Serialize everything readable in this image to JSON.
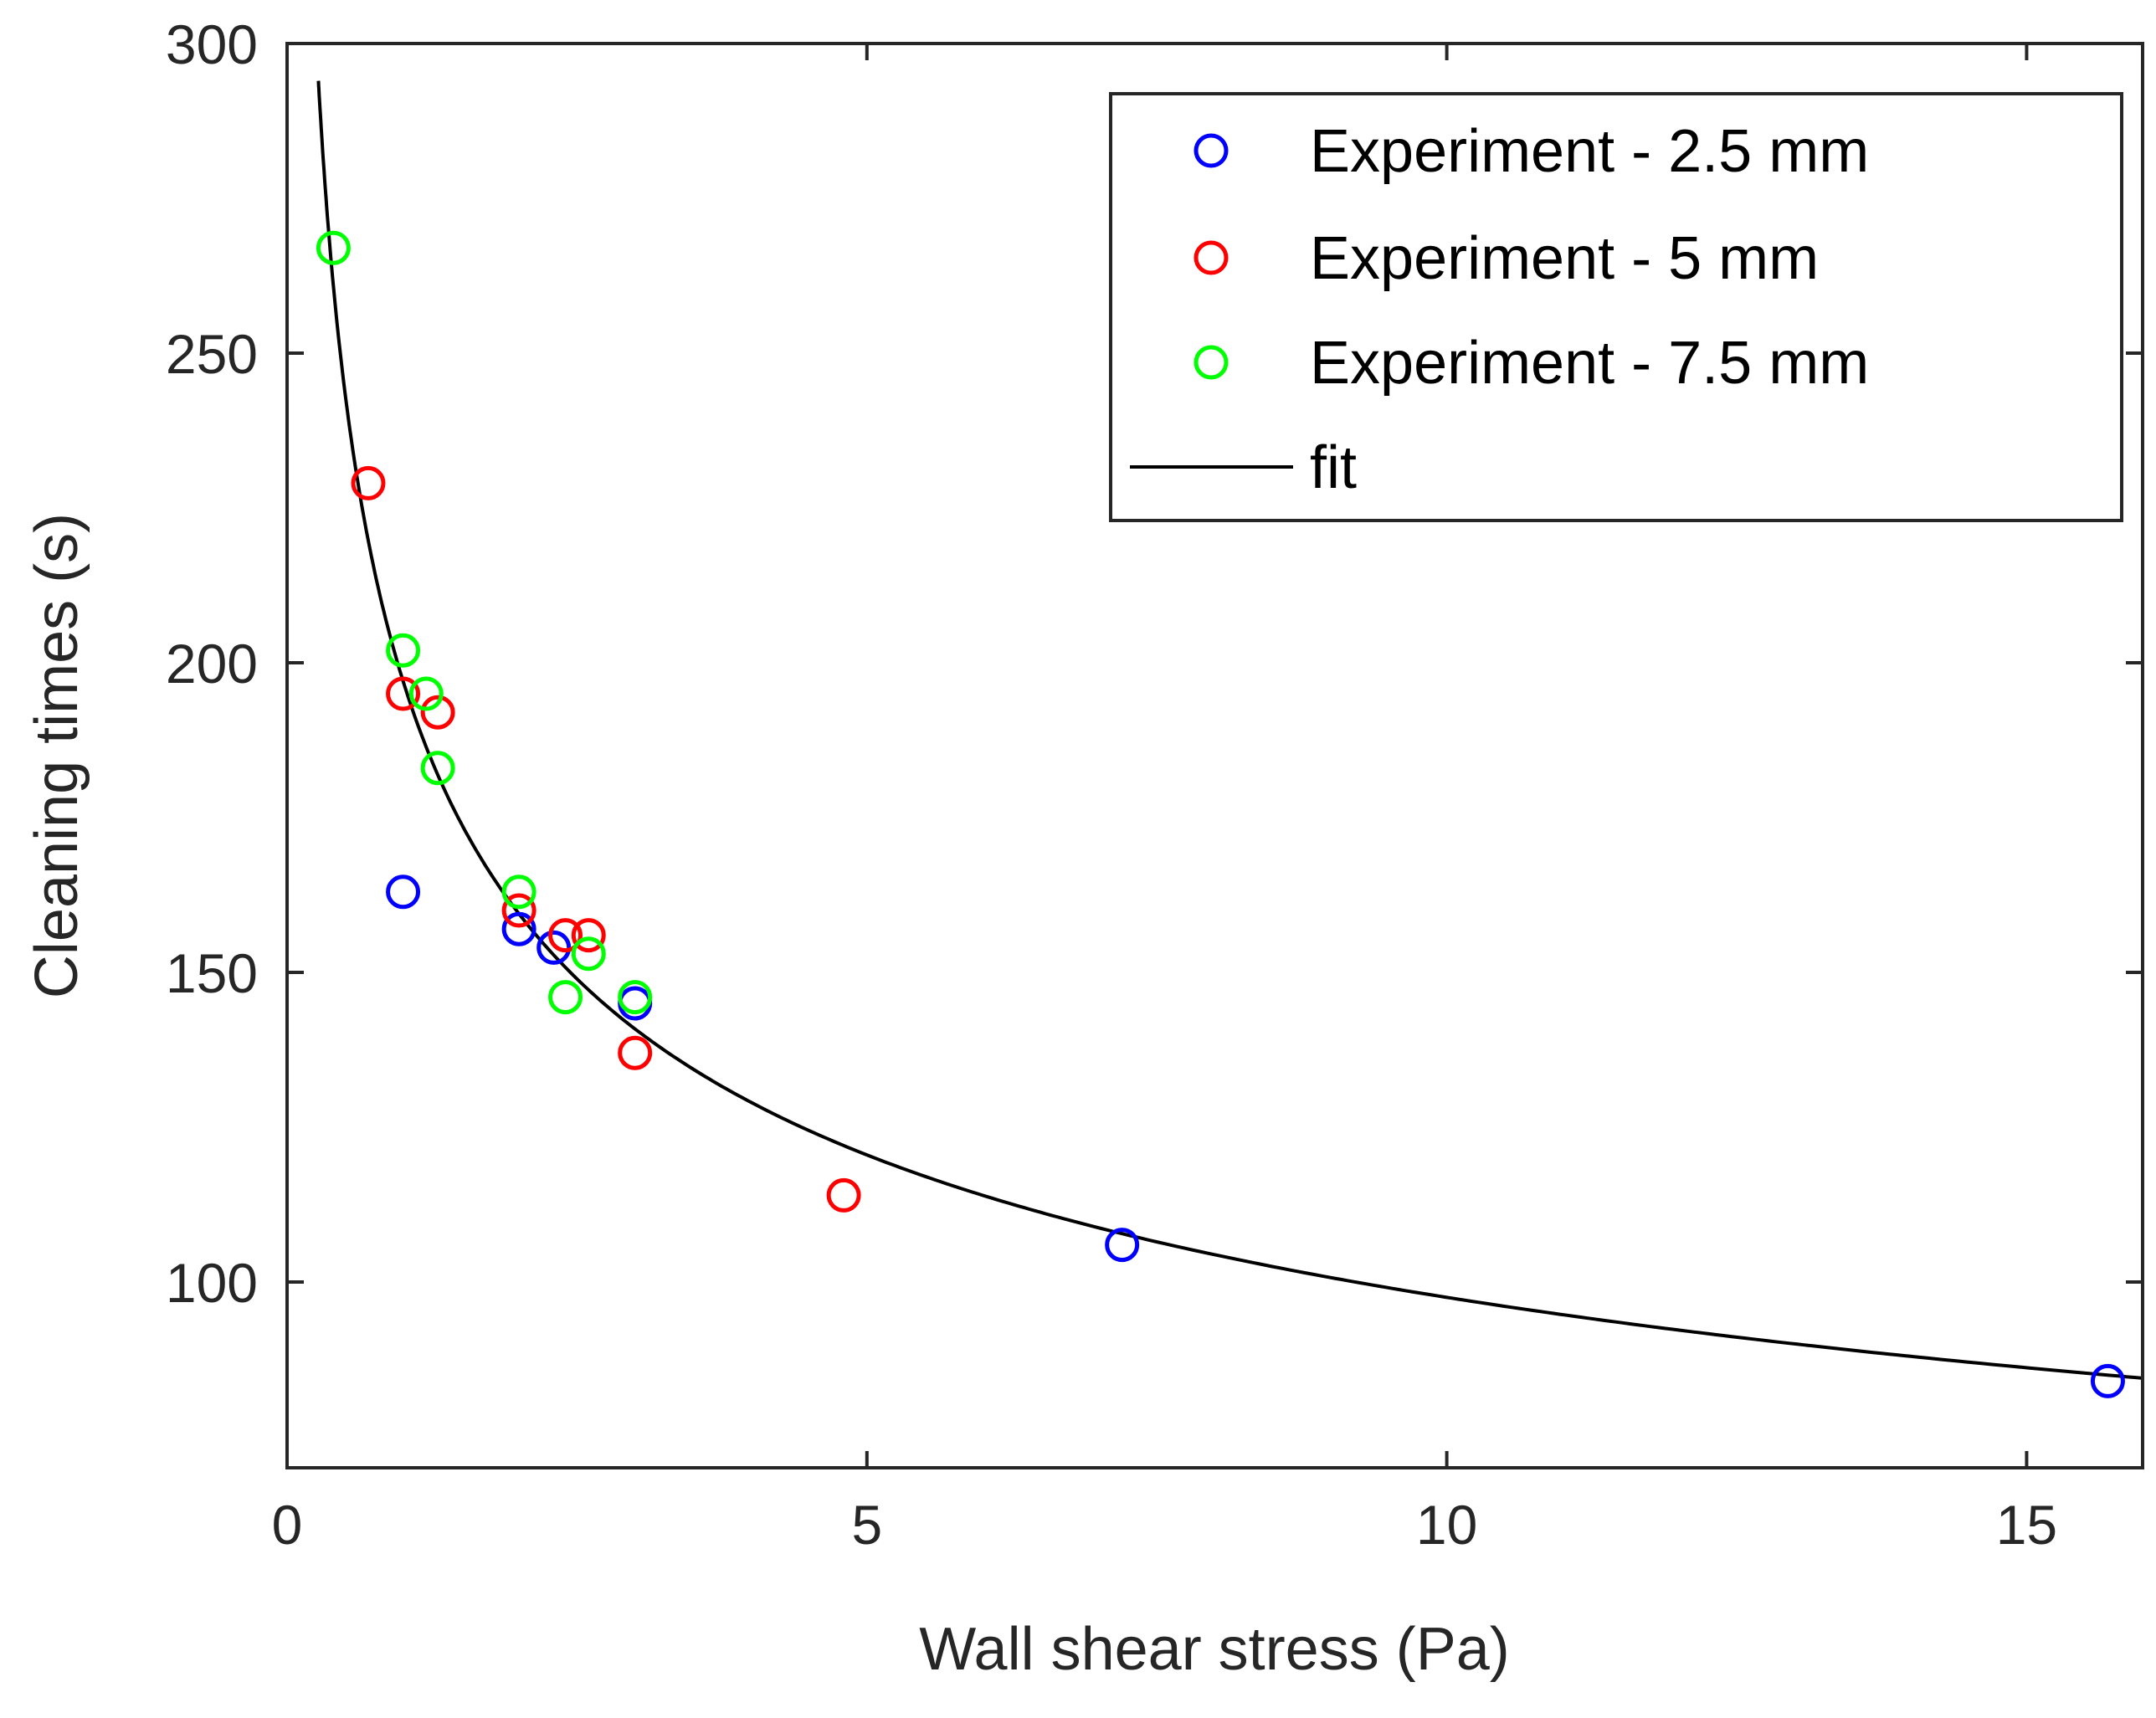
{
  "chart_data": {
    "type": "scatter",
    "title": "",
    "xlabel": "Wall shear stress (Pa)",
    "ylabel": "Cleaning times (s)",
    "xlim": [
      0,
      16
    ],
    "ylim": [
      70,
      300
    ],
    "xticks": [
      0,
      5,
      10,
      15
    ],
    "yticks": [
      100,
      150,
      200,
      250,
      300
    ],
    "grid": false,
    "legend_position": "top-right",
    "series": [
      {
        "name": "Experiment - 2.5 mm",
        "color": "#0000ff",
        "marker": "circle-open",
        "points": [
          {
            "x": 1.0,
            "y": 163
          },
          {
            "x": 2.0,
            "y": 157
          },
          {
            "x": 2.3,
            "y": 154
          },
          {
            "x": 3.0,
            "y": 145
          },
          {
            "x": 7.2,
            "y": 106
          },
          {
            "x": 15.7,
            "y": 84
          }
        ]
      },
      {
        "name": "Experiment -  5 mm",
        "color": "#ff0000",
        "marker": "circle-open",
        "points": [
          {
            "x": 0.7,
            "y": 229
          },
          {
            "x": 1.0,
            "y": 195
          },
          {
            "x": 1.3,
            "y": 192
          },
          {
            "x": 2.0,
            "y": 160
          },
          {
            "x": 2.4,
            "y": 156
          },
          {
            "x": 2.6,
            "y": 156
          },
          {
            "x": 3.0,
            "y": 137
          },
          {
            "x": 4.8,
            "y": 114
          }
        ]
      },
      {
        "name": "Experiment -  7.5 mm",
        "color": "#00ff00",
        "marker": "circle-open",
        "points": [
          {
            "x": 0.4,
            "y": 267
          },
          {
            "x": 1.0,
            "y": 202
          },
          {
            "x": 1.2,
            "y": 195
          },
          {
            "x": 1.3,
            "y": 183
          },
          {
            "x": 2.0,
            "y": 163
          },
          {
            "x": 2.4,
            "y": 146
          },
          {
            "x": 2.6,
            "y": 153
          },
          {
            "x": 3.0,
            "y": 146
          }
        ]
      }
    ],
    "fit": {
      "name": "fit",
      "color": "#000000",
      "model": "power",
      "a": 197.06,
      "b": -0.3055,
      "x_start": 0.27,
      "x_end": 16
    }
  }
}
